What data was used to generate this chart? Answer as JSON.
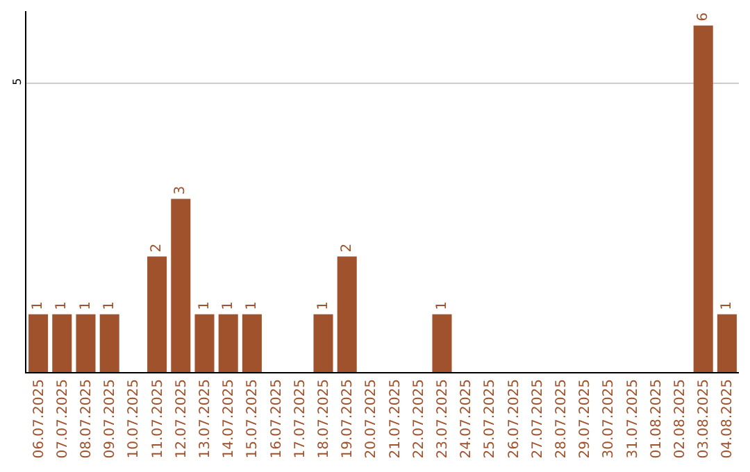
{
  "chart_data": {
    "type": "bar",
    "categories": [
      "06.07.2025",
      "07.07.2025",
      "08.07.2025",
      "09.07.2025",
      "10.07.2025",
      "11.07.2025",
      "12.07.2025",
      "13.07.2025",
      "14.07.2025",
      "15.07.2025",
      "16.07.2025",
      "17.07.2025",
      "18.07.2025",
      "19.07.2025",
      "20.07.2025",
      "21.07.2025",
      "22.07.2025",
      "23.07.2025",
      "24.07.2025",
      "25.07.2025",
      "26.07.2025",
      "27.07.2025",
      "28.07.2025",
      "29.07.2025",
      "30.07.2025",
      "31.07.2025",
      "01.08.2025",
      "02.08.2025",
      "03.08.2025",
      "04.08.2025"
    ],
    "values": [
      1,
      1,
      1,
      1,
      0,
      2,
      3,
      1,
      1,
      1,
      0,
      0,
      1,
      2,
      0,
      0,
      0,
      1,
      0,
      0,
      0,
      0,
      0,
      0,
      0,
      0,
      0,
      0,
      6,
      1
    ],
    "value_labels": [
      "1",
      "1",
      "1",
      "1",
      null,
      "2",
      "3",
      "1",
      "1",
      "1",
      null,
      null,
      "1",
      "2",
      null,
      null,
      null,
      "1",
      null,
      null,
      null,
      null,
      null,
      null,
      null,
      null,
      null,
      null,
      "6",
      "1"
    ],
    "color": "#a0522d",
    "ylim": [
      0,
      6.25
    ],
    "yticks": [
      5
    ],
    "grid": "y",
    "legend": false
  }
}
